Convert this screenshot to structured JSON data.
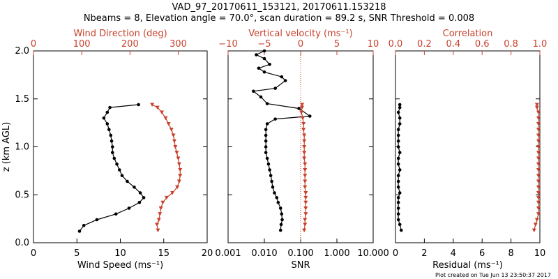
{
  "title": {
    "line1": "VAD_97_20170611_153121, 20170611.153218",
    "line2": "Nbeams = 8, Elevation angle = 70.0°, scan duration = 89.2 s, SNR Threshold = 0.008"
  },
  "footer": "Plot created on Tue Jun 13 23:50:37 2017",
  "colors": {
    "black": "#000000",
    "red": "#c8412c"
  },
  "chart_data": [
    {
      "type": "line",
      "panel": "wind",
      "ylabel": "z (km AGL)",
      "ylim": [
        0,
        2.0
      ],
      "yticks": [
        "0.0",
        "0.5",
        "1.0",
        "1.5",
        "2.0"
      ],
      "bottom_axis": {
        "label": "Wind Speed (ms⁻¹)",
        "range": [
          0,
          20
        ],
        "ticks": [
          "0",
          "5",
          "10",
          "15",
          "20"
        ]
      },
      "top_axis": {
        "label": "Wind Direction (deg)",
        "range": [
          0,
          360
        ],
        "ticks": [
          "0",
          "100",
          "200",
          "300"
        ]
      },
      "series": [
        {
          "axis": "bottom",
          "color": "black",
          "marker": "circle",
          "points": [
            [
              5.3,
              0.12
            ],
            [
              5.8,
              0.18
            ],
            [
              7.3,
              0.24
            ],
            [
              9.5,
              0.3
            ],
            [
              11.0,
              0.36
            ],
            [
              12.2,
              0.42
            ],
            [
              12.7,
              0.47
            ],
            [
              12.3,
              0.52
            ],
            [
              11.6,
              0.58
            ],
            [
              10.8,
              0.64
            ],
            [
              10.2,
              0.7
            ],
            [
              9.9,
              0.76
            ],
            [
              9.6,
              0.82
            ],
            [
              9.3,
              0.88
            ],
            [
              9.1,
              0.94
            ],
            [
              9.1,
              1.0
            ],
            [
              9.0,
              1.06
            ],
            [
              8.9,
              1.12
            ],
            [
              8.7,
              1.18
            ],
            [
              8.5,
              1.24
            ],
            [
              8.1,
              1.3
            ],
            [
              8.5,
              1.36
            ],
            [
              8.8,
              1.41
            ],
            [
              12.1,
              1.44
            ]
          ]
        },
        {
          "axis": "top",
          "color": "red",
          "marker": "triangle-down",
          "points": [
            [
              258,
              0.13
            ],
            [
              256,
              0.19
            ],
            [
              260,
              0.24
            ],
            [
              262,
              0.3
            ],
            [
              264,
              0.36
            ],
            [
              268,
              0.42
            ],
            [
              276,
              0.47
            ],
            [
              288,
              0.52
            ],
            [
              298,
              0.58
            ],
            [
              302,
              0.64
            ],
            [
              304,
              0.7
            ],
            [
              304,
              0.76
            ],
            [
              302,
              0.82
            ],
            [
              300,
              0.88
            ],
            [
              297,
              0.94
            ],
            [
              294,
              1.0
            ],
            [
              292,
              1.06
            ],
            [
              290,
              1.12
            ],
            [
              286,
              1.18
            ],
            [
              280,
              1.24
            ],
            [
              274,
              1.3
            ],
            [
              266,
              1.36
            ],
            [
              257,
              1.41
            ],
            [
              246,
              1.44
            ]
          ]
        }
      ]
    },
    {
      "type": "line",
      "panel": "snr",
      "ylim": [
        0,
        2.0
      ],
      "bottom_axis": {
        "label": "SNR",
        "scale": "log",
        "range": [
          0.001,
          10
        ],
        "ticks": [
          "0.001",
          "0.010",
          "0.100",
          "1.000",
          "10.000"
        ]
      },
      "top_axis": {
        "label": "Vertical velocity (ms⁻¹)",
        "range": [
          -10,
          10
        ],
        "ticks": [
          "−10",
          "−5",
          "0",
          "5",
          "10"
        ]
      },
      "reference_line": {
        "axis": "top",
        "value": 0,
        "style": "dotted",
        "color": "red"
      },
      "series": [
        {
          "axis": "bottom",
          "color": "black",
          "marker": "circle",
          "points": [
            [
              0.028,
              0.13
            ],
            [
              0.029,
              0.19
            ],
            [
              0.031,
              0.24
            ],
            [
              0.03,
              0.3
            ],
            [
              0.028,
              0.36
            ],
            [
              0.024,
              0.42
            ],
            [
              0.022,
              0.47
            ],
            [
              0.019,
              0.52
            ],
            [
              0.017,
              0.58
            ],
            [
              0.016,
              0.64
            ],
            [
              0.015,
              0.7
            ],
            [
              0.014,
              0.76
            ],
            [
              0.013,
              0.82
            ],
            [
              0.012,
              0.88
            ],
            [
              0.011,
              0.94
            ],
            [
              0.011,
              1.0
            ],
            [
              0.011,
              1.06
            ],
            [
              0.011,
              1.12
            ],
            [
              0.011,
              1.18
            ],
            [
              0.012,
              1.24
            ],
            [
              0.02,
              1.29
            ],
            [
              0.18,
              1.32
            ],
            [
              0.09,
              1.4
            ],
            [
              0.012,
              1.45
            ],
            [
              0.008,
              1.52
            ],
            [
              0.005,
              1.58
            ],
            [
              0.02,
              1.61
            ],
            [
              0.038,
              1.69
            ],
            [
              0.03,
              1.73
            ],
            [
              0.01,
              1.78
            ],
            [
              0.007,
              1.82
            ],
            [
              0.014,
              1.86
            ],
            [
              0.01,
              1.92
            ],
            [
              0.006,
              1.96
            ],
            [
              0.01,
              2.0
            ]
          ]
        },
        {
          "axis": "top",
          "color": "red",
          "marker": "triangle-down",
          "points": [
            [
              0.5,
              0.13
            ],
            [
              0.6,
              0.19
            ],
            [
              0.6,
              0.24
            ],
            [
              0.7,
              0.3
            ],
            [
              0.7,
              0.36
            ],
            [
              0.7,
              0.42
            ],
            [
              0.7,
              0.47
            ],
            [
              0.7,
              0.52
            ],
            [
              0.6,
              0.58
            ],
            [
              0.6,
              0.64
            ],
            [
              0.6,
              0.7
            ],
            [
              0.6,
              0.76
            ],
            [
              0.6,
              0.82
            ],
            [
              0.5,
              0.88
            ],
            [
              0.5,
              0.94
            ],
            [
              0.5,
              1.0
            ],
            [
              0.5,
              1.06
            ],
            [
              0.5,
              1.12
            ],
            [
              0.4,
              1.18
            ],
            [
              0.4,
              1.24
            ],
            [
              0.3,
              1.3
            ],
            [
              0.1,
              1.36
            ],
            [
              0.2,
              1.41
            ],
            [
              0.2,
              1.44
            ]
          ]
        }
      ]
    },
    {
      "type": "line",
      "panel": "residual",
      "ylim": [
        0,
        2.0
      ],
      "bottom_axis": {
        "label": "Residual (ms⁻¹)",
        "range": [
          0,
          10
        ],
        "ticks": [
          "0",
          "2",
          "4",
          "6",
          "8",
          "10"
        ]
      },
      "top_axis": {
        "label": "Correlation",
        "range": [
          0,
          1.0
        ],
        "ticks": [
          "0.0",
          "0.2",
          "0.4",
          "0.6",
          "0.8",
          "1.0"
        ]
      },
      "series": [
        {
          "axis": "bottom",
          "color": "black",
          "marker": "circle",
          "points": [
            [
              0.4,
              0.13
            ],
            [
              0.3,
              0.19
            ],
            [
              0.2,
              0.24
            ],
            [
              0.2,
              0.3
            ],
            [
              0.2,
              0.36
            ],
            [
              0.2,
              0.42
            ],
            [
              0.2,
              0.47
            ],
            [
              0.3,
              0.52
            ],
            [
              0.2,
              0.58
            ],
            [
              0.2,
              0.64
            ],
            [
              0.2,
              0.7
            ],
            [
              0.3,
              0.76
            ],
            [
              0.2,
              0.82
            ],
            [
              0.2,
              0.88
            ],
            [
              0.3,
              0.94
            ],
            [
              0.2,
              1.0
            ],
            [
              0.2,
              1.06
            ],
            [
              0.2,
              1.12
            ],
            [
              0.2,
              1.18
            ],
            [
              0.3,
              1.24
            ],
            [
              0.3,
              1.3
            ],
            [
              0.2,
              1.36
            ],
            [
              0.3,
              1.41
            ],
            [
              0.3,
              1.44
            ]
          ]
        },
        {
          "axis": "top",
          "color": "red",
          "marker": "triangle-down",
          "points": [
            [
              0.96,
              0.13
            ],
            [
              0.97,
              0.19
            ],
            [
              0.98,
              0.24
            ],
            [
              0.99,
              0.3
            ],
            [
              0.99,
              0.36
            ],
            [
              0.99,
              0.42
            ],
            [
              0.99,
              0.47
            ],
            [
              0.99,
              0.52
            ],
            [
              0.99,
              0.58
            ],
            [
              0.99,
              0.64
            ],
            [
              0.99,
              0.7
            ],
            [
              0.99,
              0.76
            ],
            [
              0.99,
              0.82
            ],
            [
              0.99,
              0.88
            ],
            [
              0.99,
              0.94
            ],
            [
              0.99,
              1.0
            ],
            [
              0.99,
              1.06
            ],
            [
              0.99,
              1.12
            ],
            [
              0.99,
              1.18
            ],
            [
              0.99,
              1.24
            ],
            [
              0.99,
              1.3
            ],
            [
              0.99,
              1.36
            ],
            [
              0.98,
              1.41
            ],
            [
              0.98,
              1.44
            ]
          ]
        }
      ]
    }
  ]
}
